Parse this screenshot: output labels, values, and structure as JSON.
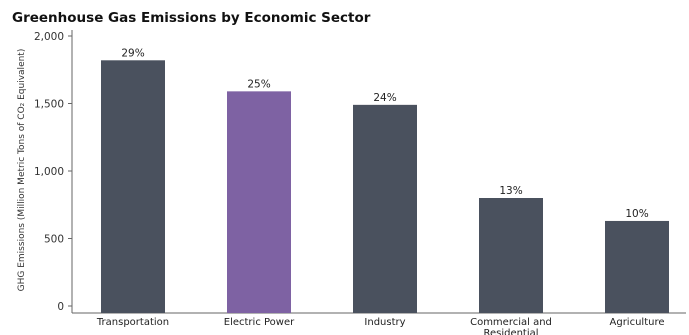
{
  "chart_data": {
    "type": "bar",
    "title": "Greenhouse Gas Emissions by Economic Sector",
    "ylabel": "GHG Emissions (Million Metric Tons of CO₂ Equivalent)",
    "xlabel": "",
    "ylim": [
      0,
      2000
    ],
    "yticks": [
      0,
      500,
      1000,
      1500,
      2000
    ],
    "ytick_labels": [
      "0",
      "500",
      "1,000",
      "1,500",
      "2,000"
    ],
    "grid": false,
    "categories": [
      "Transportation",
      "Electric Power",
      "Industry",
      "Commercial and Residential",
      "Agriculture"
    ],
    "category_label_lines": [
      [
        "Transportation"
      ],
      [
        "Electric Power"
      ],
      [
        "Industry"
      ],
      [
        "Commercial and",
        "Residential"
      ],
      [
        "Agriculture"
      ]
    ],
    "values": [
      1820,
      1590,
      1490,
      800,
      630
    ],
    "data_labels": [
      "29%",
      "25%",
      "24%",
      "13%",
      "10%"
    ],
    "colors": [
      "#4a515e",
      "#7e62a3",
      "#4a515e",
      "#4a515e",
      "#4a515e"
    ]
  }
}
